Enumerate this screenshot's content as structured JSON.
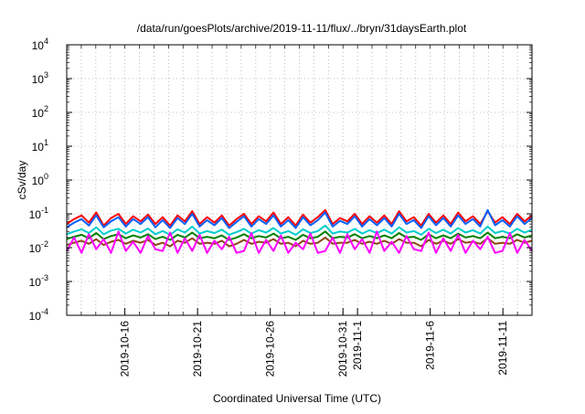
{
  "chart_data": {
    "type": "line",
    "title": "/data/run/goesPlots/archive/2019-11-11/flux/../bryn/31daysEarth.plot",
    "xlabel": "Coordinated Universal Time (UTC)",
    "ylabel": "cSv/day",
    "y_scale": "log",
    "ylim": [
      0.0001,
      10000
    ],
    "y_ticks": [
      {
        "value": 0.0001,
        "mantissa": "10",
        "exp": "-4"
      },
      {
        "value": 0.001,
        "mantissa": "10",
        "exp": "-3"
      },
      {
        "value": 0.01,
        "mantissa": "10",
        "exp": "-2"
      },
      {
        "value": 0.1,
        "mantissa": "10",
        "exp": "-1"
      },
      {
        "value": 1,
        "mantissa": "10",
        "exp": "0"
      },
      {
        "value": 10,
        "mantissa": "10",
        "exp": "1"
      },
      {
        "value": 100,
        "mantissa": "10",
        "exp": "2"
      },
      {
        "value": 1000,
        "mantissa": "10",
        "exp": "3"
      },
      {
        "value": 10000,
        "mantissa": "10",
        "exp": "4"
      }
    ],
    "xlim": [
      "2019-10-12",
      "2019-11-13"
    ],
    "x_tick_labels": [
      {
        "date": "2019-10-16",
        "label": "2019-10-16"
      },
      {
        "date": "2019-10-21",
        "label": "2019-10-21"
      },
      {
        "date": "2019-10-26",
        "label": "2019-10-26"
      },
      {
        "date": "2019-10-31",
        "label": "2019-10-31"
      },
      {
        "date": "2019-11-01",
        "label": "2019-11-1"
      },
      {
        "date": "2019-11-06",
        "label": "2019-11-6"
      },
      {
        "date": "2019-11-11",
        "label": "2019-11-11"
      }
    ],
    "grid": true,
    "series": [
      {
        "color": "#ff0000",
        "values": [
          0.05,
          0.07,
          0.09,
          0.055,
          0.11,
          0.045,
          0.075,
          0.1,
          0.05,
          0.085,
          0.06,
          0.095,
          0.05,
          0.08,
          0.045,
          0.09,
          0.06,
          0.12,
          0.05,
          0.08,
          0.055,
          0.09,
          0.045,
          0.07,
          0.1,
          0.05,
          0.085,
          0.06,
          0.11,
          0.05,
          0.08,
          0.045,
          0.095,
          0.055,
          0.08,
          0.13,
          0.05,
          0.075,
          0.06,
          0.1,
          0.05,
          0.085,
          0.055,
          0.09,
          0.05,
          0.12,
          0.06,
          0.08,
          0.045,
          0.1,
          0.055,
          0.09,
          0.05,
          0.11,
          0.06,
          0.085,
          0.05,
          0.12,
          0.055,
          0.08,
          0.05,
          0.1,
          0.06,
          0.09
        ]
      },
      {
        "color": "#0060ff",
        "values": [
          0.04,
          0.055,
          0.07,
          0.045,
          0.09,
          0.04,
          0.06,
          0.08,
          0.042,
          0.07,
          0.05,
          0.08,
          0.04,
          0.065,
          0.038,
          0.075,
          0.05,
          0.1,
          0.042,
          0.065,
          0.046,
          0.075,
          0.038,
          0.058,
          0.085,
          0.042,
          0.07,
          0.05,
          0.09,
          0.042,
          0.065,
          0.038,
          0.08,
          0.046,
          0.065,
          0.11,
          0.042,
          0.062,
          0.05,
          0.085,
          0.042,
          0.07,
          0.046,
          0.075,
          0.042,
          0.1,
          0.05,
          0.065,
          0.038,
          0.085,
          0.046,
          0.075,
          0.042,
          0.09,
          0.05,
          0.07,
          0.042,
          0.13,
          0.046,
          0.065,
          0.042,
          0.085,
          0.05,
          0.075
        ]
      },
      {
        "color": "#00cccc",
        "values": [
          0.025,
          0.03,
          0.035,
          0.027,
          0.04,
          0.025,
          0.032,
          0.036,
          0.026,
          0.034,
          0.028,
          0.037,
          0.025,
          0.031,
          0.024,
          0.035,
          0.028,
          0.042,
          0.026,
          0.031,
          0.027,
          0.034,
          0.024,
          0.029,
          0.036,
          0.026,
          0.033,
          0.028,
          0.038,
          0.026,
          0.031,
          0.024,
          0.035,
          0.027,
          0.031,
          0.045,
          0.026,
          0.03,
          0.028,
          0.036,
          0.026,
          0.033,
          0.027,
          0.034,
          0.026,
          0.04,
          0.028,
          0.031,
          0.024,
          0.036,
          0.027,
          0.034,
          0.026,
          0.038,
          0.028,
          0.033,
          0.026,
          0.042,
          0.027,
          0.031,
          0.026,
          0.036,
          0.028,
          0.034
        ]
      },
      {
        "color": "#008000",
        "values": [
          0.018,
          0.021,
          0.024,
          0.019,
          0.027,
          0.018,
          0.022,
          0.025,
          0.019,
          0.023,
          0.02,
          0.025,
          0.018,
          0.021,
          0.017,
          0.024,
          0.02,
          0.028,
          0.019,
          0.021,
          0.019,
          0.023,
          0.017,
          0.02,
          0.025,
          0.019,
          0.022,
          0.02,
          0.026,
          0.019,
          0.021,
          0.017,
          0.024,
          0.019,
          0.021,
          0.03,
          0.019,
          0.021,
          0.02,
          0.025,
          0.019,
          0.022,
          0.019,
          0.023,
          0.019,
          0.027,
          0.02,
          0.021,
          0.017,
          0.025,
          0.019,
          0.023,
          0.019,
          0.026,
          0.02,
          0.022,
          0.019,
          0.028,
          0.019,
          0.021,
          0.019,
          0.025,
          0.02,
          0.023
        ]
      },
      {
        "color": "#8b4513",
        "values": [
          0.012,
          0.014,
          0.016,
          0.013,
          0.018,
          0.012,
          0.015,
          0.017,
          0.013,
          0.016,
          0.014,
          0.017,
          0.012,
          0.014,
          0.011,
          0.016,
          0.014,
          0.019,
          0.013,
          0.014,
          0.013,
          0.016,
          0.011,
          0.013,
          0.017,
          0.013,
          0.015,
          0.014,
          0.018,
          0.013,
          0.014,
          0.011,
          0.016,
          0.013,
          0.014,
          0.02,
          0.013,
          0.014,
          0.014,
          0.017,
          0.013,
          0.015,
          0.013,
          0.016,
          0.013,
          0.018,
          0.014,
          0.014,
          0.011,
          0.017,
          0.013,
          0.016,
          0.013,
          0.018,
          0.014,
          0.015,
          0.013,
          0.019,
          0.013,
          0.014,
          0.013,
          0.017,
          0.014,
          0.016
        ]
      },
      {
        "color": "#ff00ff",
        "values": [
          0.008,
          0.02,
          0.007,
          0.025,
          0.009,
          0.018,
          0.007,
          0.03,
          0.008,
          0.015,
          0.007,
          0.022,
          0.009,
          0.008,
          0.028,
          0.007,
          0.019,
          0.008,
          0.024,
          0.007,
          0.016,
          0.009,
          0.021,
          0.007,
          0.008,
          0.027,
          0.007,
          0.017,
          0.008,
          0.023,
          0.007,
          0.014,
          0.009,
          0.026,
          0.007,
          0.008,
          0.02,
          0.007,
          0.025,
          0.009,
          0.018,
          0.007,
          0.03,
          0.008,
          0.015,
          0.007,
          0.022,
          0.009,
          0.008,
          0.028,
          0.007,
          0.019,
          0.008,
          0.024,
          0.007,
          0.016,
          0.009,
          0.021,
          0.007,
          0.008,
          0.027,
          0.007,
          0.017,
          0.008
        ]
      }
    ]
  }
}
